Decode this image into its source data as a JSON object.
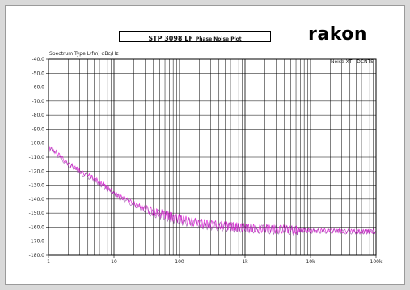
{
  "title": {
    "main": "STP 3098 LF",
    "sub": "Phase Noise Plot"
  },
  "logo_text": "rakon",
  "spectrum_label": "Spectrum Type  L(fm) dBc/Hz",
  "measurement_label": "Noise XT - DCNTS",
  "colors": {
    "trace_magenta": "#e01ed8",
    "trace_purple": "#8e3d9e",
    "grid": "#000000"
  },
  "chart_data": {
    "type": "line",
    "title": "STP 3098 LF Phase Noise Plot",
    "ylabel": "L(fm) dBc/Hz",
    "xscale": "log",
    "xlim": [
      1,
      100000
    ],
    "ylim": [
      -180,
      -40
    ],
    "grid": true,
    "x_ticks": [
      {
        "value": 1,
        "label": "1"
      },
      {
        "value": 10,
        "label": "10"
      },
      {
        "value": 100,
        "label": "100"
      },
      {
        "value": 1000,
        "label": "1k"
      },
      {
        "value": 10000,
        "label": "10k"
      },
      {
        "value": 100000,
        "label": "100k"
      }
    ],
    "y_ticks": [
      {
        "value": -40,
        "label": "-40.0"
      },
      {
        "value": -50,
        "label": "-50.0"
      },
      {
        "value": -60,
        "label": "-60.0"
      },
      {
        "value": -70,
        "label": "-70.0"
      },
      {
        "value": -80,
        "label": "-80.0"
      },
      {
        "value": -90,
        "label": "-90.0"
      },
      {
        "value": -100,
        "label": "-100.0"
      },
      {
        "value": -110,
        "label": "-110.0"
      },
      {
        "value": -120,
        "label": "-120.0"
      },
      {
        "value": -130,
        "label": "-130.0"
      },
      {
        "value": -140,
        "label": "-140.0"
      },
      {
        "value": -150,
        "label": "-150.0"
      },
      {
        "value": -160,
        "label": "-160.0"
      },
      {
        "value": -170,
        "label": "-170.0"
      },
      {
        "value": -180,
        "label": "-180.0"
      }
    ],
    "series": [
      {
        "color": "#e01ed8",
        "x": [
          1,
          1.2,
          1.5,
          2,
          2.5,
          3,
          4,
          5,
          6,
          7,
          8,
          10,
          12,
          15,
          20,
          25,
          30,
          40,
          50,
          60,
          70,
          80,
          100,
          120,
          150,
          200,
          250,
          300,
          400,
          500,
          600,
          700,
          800,
          1000,
          1200,
          1500,
          2000,
          2500,
          3000,
          4000,
          5000,
          6000,
          7000,
          8000,
          10000,
          12000,
          15000,
          20000,
          25000,
          30000,
          40000,
          50000,
          60000,
          70000,
          80000,
          100000
        ],
        "y": [
          -103,
          -105,
          -109,
          -115,
          -117,
          -120,
          -123,
          -125,
          -128,
          -130,
          -132,
          -135,
          -138,
          -140,
          -143,
          -145,
          -147,
          -149,
          -150,
          -151,
          -152,
          -153,
          -154,
          -155,
          -156,
          -157,
          -157.5,
          -158,
          -158.5,
          -159,
          -159.5,
          -159.5,
          -160,
          -160.5,
          -160.5,
          -161,
          -161,
          -161.5,
          -161.5,
          -161.5,
          -162,
          -162,
          -162,
          -162,
          -162.5,
          -162.5,
          -162.5,
          -162.5,
          -162.5,
          -163,
          -163,
          -163,
          -163,
          -163,
          -163,
          -163
        ]
      },
      {
        "color": "#8e3d9e",
        "x": [
          1,
          1.2,
          1.5,
          2,
          2.5,
          3,
          4,
          5,
          6,
          7,
          8,
          10,
          12,
          15,
          20,
          25,
          30,
          40,
          50,
          60,
          70,
          80,
          100,
          120,
          150,
          200,
          250,
          300,
          400,
          500,
          600,
          700,
          800,
          1000,
          1200,
          1500,
          2000,
          2500,
          3000,
          4000,
          5000,
          6000,
          7000,
          8000,
          10000,
          12000,
          15000,
          20000,
          25000,
          30000,
          40000,
          50000,
          60000,
          70000,
          80000,
          100000
        ],
        "y": [
          -104,
          -106,
          -110,
          -116,
          -118,
          -121,
          -124,
          -126,
          -129,
          -131,
          -133,
          -136,
          -139,
          -141,
          -144,
          -146,
          -148,
          -150,
          -151,
          -152,
          -153,
          -154,
          -155,
          -156,
          -157,
          -158,
          -158.5,
          -159,
          -159.5,
          -160,
          -160,
          -160.5,
          -160.5,
          -161,
          -161,
          -161.5,
          -161.5,
          -162,
          -162,
          -162,
          -162.5,
          -162.5,
          -162.5,
          -162.5,
          -163,
          -163,
          -163,
          -163,
          -163,
          -163.5,
          -163.5,
          -163.5,
          -163.5,
          -163.5,
          -163.5,
          -163.5
        ]
      }
    ]
  }
}
